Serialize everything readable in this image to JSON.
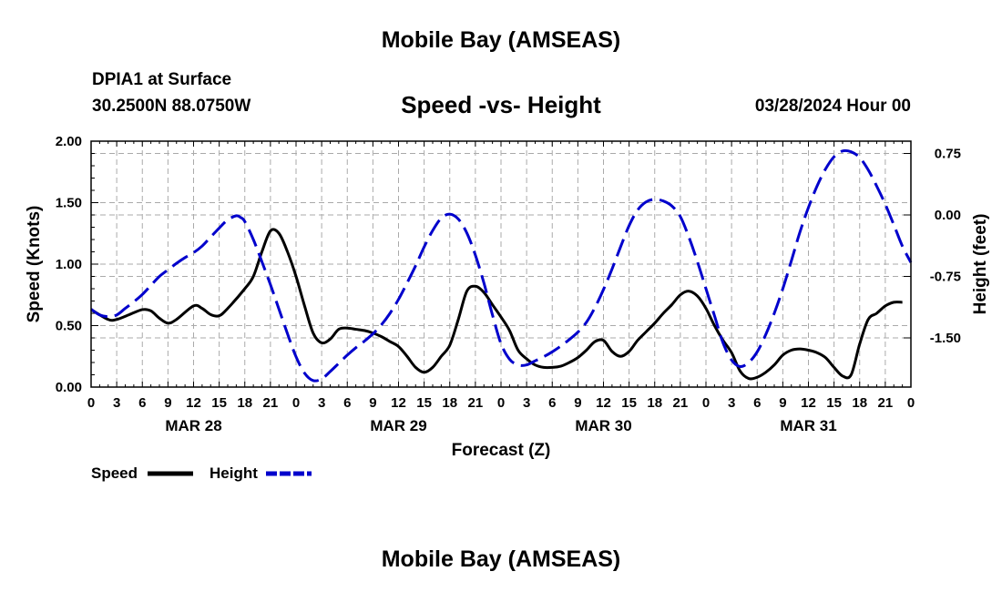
{
  "header": {
    "title": "Mobile Bay (AMSEAS)",
    "station": "DPIA1 at Surface",
    "coords": "30.2500N  88.0750W",
    "datetime": "03/28/2024 Hour 00"
  },
  "footer": {
    "title": "Mobile Bay (AMSEAS)"
  },
  "colors": {
    "speed": "#000000",
    "height": "#0000cc",
    "grid": "#aaaaaa"
  },
  "chart_data": {
    "type": "line",
    "title": "Speed -vs- Height",
    "xlabel": "Forecast (Z)",
    "ylabel_left": "Speed (Knots)",
    "ylabel_right": "Height (feet)",
    "x_range": [
      0,
      96
    ],
    "x_ticks": [
      0,
      3,
      6,
      9,
      12,
      15,
      18,
      21,
      24,
      27,
      30,
      33,
      36,
      39,
      42,
      45,
      48,
      51,
      54,
      57,
      60,
      63,
      66,
      69,
      72,
      75,
      78,
      81,
      84,
      87,
      90,
      93,
      96
    ],
    "x_tick_labels": [
      "0",
      "3",
      "6",
      "9",
      "12",
      "15",
      "18",
      "21",
      "0",
      "3",
      "6",
      "9",
      "12",
      "15",
      "18",
      "21",
      "0",
      "3",
      "6",
      "9",
      "12",
      "15",
      "18",
      "21",
      "0",
      "3",
      "6",
      "9",
      "12",
      "15",
      "18",
      "21",
      "0"
    ],
    "day_labels": [
      {
        "hour": 12,
        "label": "MAR 28"
      },
      {
        "hour": 36,
        "label": "MAR 29"
      },
      {
        "hour": 60,
        "label": "MAR 30"
      },
      {
        "hour": 84,
        "label": "MAR 31"
      }
    ],
    "ylim_left": [
      0,
      2.0
    ],
    "y_ticks_left": [
      0,
      0.5,
      1.0,
      1.5,
      2.0
    ],
    "y_tick_labels_left": [
      "0.00",
      "0.50",
      "1.00",
      "1.50",
      "2.00"
    ],
    "ylim_right": [
      -2.1,
      0.9
    ],
    "y_ticks_right": [
      -1.5,
      -0.75,
      0.0,
      0.75
    ],
    "y_tick_labels_right": [
      "-1.50",
      "-0.75",
      "0.00",
      "0.75"
    ],
    "grid": true,
    "series": [
      {
        "name": "Speed",
        "axis": "left",
        "style": "solid",
        "points": [
          [
            0,
            0.63
          ],
          [
            2,
            0.55
          ],
          [
            3,
            0.55
          ],
          [
            4.5,
            0.59
          ],
          [
            6,
            0.63
          ],
          [
            7,
            0.62
          ],
          [
            8,
            0.56
          ],
          [
            9,
            0.52
          ],
          [
            10,
            0.55
          ],
          [
            12,
            0.66
          ],
          [
            13,
            0.64
          ],
          [
            14,
            0.59
          ],
          [
            15,
            0.58
          ],
          [
            16,
            0.64
          ],
          [
            18,
            0.8
          ],
          [
            19,
            0.9
          ],
          [
            20,
            1.1
          ],
          [
            21,
            1.27
          ],
          [
            22,
            1.25
          ],
          [
            23,
            1.1
          ],
          [
            24,
            0.9
          ],
          [
            25,
            0.66
          ],
          [
            26,
            0.44
          ],
          [
            27,
            0.36
          ],
          [
            28,
            0.39
          ],
          [
            29,
            0.47
          ],
          [
            30,
            0.48
          ],
          [
            31,
            0.47
          ],
          [
            32,
            0.46
          ],
          [
            33,
            0.44
          ],
          [
            34,
            0.41
          ],
          [
            35,
            0.37
          ],
          [
            36,
            0.33
          ],
          [
            37,
            0.25
          ],
          [
            38,
            0.16
          ],
          [
            39,
            0.12
          ],
          [
            40,
            0.16
          ],
          [
            41,
            0.25
          ],
          [
            42,
            0.34
          ],
          [
            43,
            0.55
          ],
          [
            44,
            0.78
          ],
          [
            45,
            0.82
          ],
          [
            46,
            0.77
          ],
          [
            47,
            0.67
          ],
          [
            48,
            0.57
          ],
          [
            49,
            0.46
          ],
          [
            50,
            0.3
          ],
          [
            51,
            0.23
          ],
          [
            52,
            0.18
          ],
          [
            53,
            0.16
          ],
          [
            54,
            0.16
          ],
          [
            55,
            0.17
          ],
          [
            56,
            0.2
          ],
          [
            57,
            0.24
          ],
          [
            58,
            0.3
          ],
          [
            59,
            0.37
          ],
          [
            60,
            0.38
          ],
          [
            61,
            0.29
          ],
          [
            62,
            0.25
          ],
          [
            63,
            0.29
          ],
          [
            64,
            0.38
          ],
          [
            65,
            0.45
          ],
          [
            66,
            0.52
          ],
          [
            67,
            0.6
          ],
          [
            68,
            0.67
          ],
          [
            69,
            0.75
          ],
          [
            70,
            0.78
          ],
          [
            71,
            0.74
          ],
          [
            72,
            0.64
          ],
          [
            73,
            0.5
          ],
          [
            74,
            0.38
          ],
          [
            75,
            0.28
          ],
          [
            76,
            0.13
          ],
          [
            77,
            0.07
          ],
          [
            78,
            0.08
          ],
          [
            79,
            0.12
          ],
          [
            80,
            0.18
          ],
          [
            81,
            0.26
          ],
          [
            82,
            0.3
          ],
          [
            83,
            0.31
          ],
          [
            84,
            0.3
          ],
          [
            85,
            0.28
          ],
          [
            86,
            0.24
          ],
          [
            87,
            0.16
          ],
          [
            88,
            0.09
          ],
          [
            89,
            0.1
          ],
          [
            90,
            0.35
          ],
          [
            91,
            0.55
          ],
          [
            92,
            0.6
          ],
          [
            93,
            0.66
          ],
          [
            94,
            0.69
          ],
          [
            95,
            0.69
          ]
        ]
      },
      {
        "name": "Height",
        "axis": "right",
        "style": "dashed",
        "points": [
          [
            0,
            -1.15
          ],
          [
            1,
            -1.22
          ],
          [
            2,
            -1.24
          ],
          [
            3,
            -1.22
          ],
          [
            4,
            -1.14
          ],
          [
            5,
            -1.06
          ],
          [
            6,
            -0.97
          ],
          [
            7,
            -0.86
          ],
          [
            8,
            -0.75
          ],
          [
            9,
            -0.67
          ],
          [
            10,
            -0.59
          ],
          [
            11,
            -0.52
          ],
          [
            12,
            -0.46
          ],
          [
            13,
            -0.38
          ],
          [
            14,
            -0.27
          ],
          [
            15,
            -0.16
          ],
          [
            16,
            -0.06
          ],
          [
            17,
            -0.01
          ],
          [
            17.5,
            -0.03
          ],
          [
            18,
            -0.08
          ],
          [
            19,
            -0.3
          ],
          [
            20,
            -0.57
          ],
          [
            21,
            -0.85
          ],
          [
            22,
            -1.15
          ],
          [
            23,
            -1.45
          ],
          [
            24,
            -1.73
          ],
          [
            25,
            -1.93
          ],
          [
            26,
            -2.02
          ],
          [
            27,
            -2.0
          ],
          [
            28,
            -1.91
          ],
          [
            29,
            -1.81
          ],
          [
            30,
            -1.71
          ],
          [
            31,
            -1.62
          ],
          [
            32,
            -1.54
          ],
          [
            33,
            -1.45
          ],
          [
            34,
            -1.34
          ],
          [
            35,
            -1.2
          ],
          [
            36,
            -1.03
          ],
          [
            37,
            -0.83
          ],
          [
            38,
            -0.62
          ],
          [
            39,
            -0.39
          ],
          [
            40,
            -0.19
          ],
          [
            41,
            -0.04
          ],
          [
            42,
            0.01
          ],
          [
            43,
            -0.05
          ],
          [
            44,
            -0.22
          ],
          [
            45,
            -0.49
          ],
          [
            46,
            -0.83
          ],
          [
            47,
            -1.22
          ],
          [
            48,
            -1.57
          ],
          [
            49,
            -1.76
          ],
          [
            50,
            -1.83
          ],
          [
            51,
            -1.83
          ],
          [
            52,
            -1.78
          ],
          [
            53,
            -1.73
          ],
          [
            54,
            -1.67
          ],
          [
            55,
            -1.6
          ],
          [
            56,
            -1.52
          ],
          [
            57,
            -1.43
          ],
          [
            58,
            -1.31
          ],
          [
            59,
            -1.13
          ],
          [
            60,
            -0.91
          ],
          [
            61,
            -0.66
          ],
          [
            62,
            -0.39
          ],
          [
            63,
            -0.13
          ],
          [
            64,
            0.06
          ],
          [
            65,
            0.16
          ],
          [
            66,
            0.19
          ],
          [
            67,
            0.17
          ],
          [
            68,
            0.11
          ],
          [
            69,
            -0.02
          ],
          [
            70,
            -0.27
          ],
          [
            71,
            -0.57
          ],
          [
            72,
            -0.9
          ],
          [
            73,
            -1.23
          ],
          [
            74,
            -1.56
          ],
          [
            75,
            -1.77
          ],
          [
            76,
            -1.85
          ],
          [
            77,
            -1.8
          ],
          [
            78,
            -1.67
          ],
          [
            79,
            -1.46
          ],
          [
            80,
            -1.2
          ],
          [
            81,
            -0.9
          ],
          [
            82,
            -0.56
          ],
          [
            83,
            -0.21
          ],
          [
            84,
            0.09
          ],
          [
            85,
            0.35
          ],
          [
            86,
            0.56
          ],
          [
            87,
            0.71
          ],
          [
            88,
            0.78
          ],
          [
            89,
            0.77
          ],
          [
            90,
            0.7
          ],
          [
            91,
            0.55
          ],
          [
            92,
            0.35
          ],
          [
            93,
            0.13
          ],
          [
            94,
            -0.12
          ],
          [
            95,
            -0.38
          ],
          [
            96,
            -0.58
          ]
        ]
      }
    ],
    "legend": [
      {
        "label": "Speed",
        "style": "solid"
      },
      {
        "label": "Height",
        "style": "dashed"
      }
    ]
  }
}
